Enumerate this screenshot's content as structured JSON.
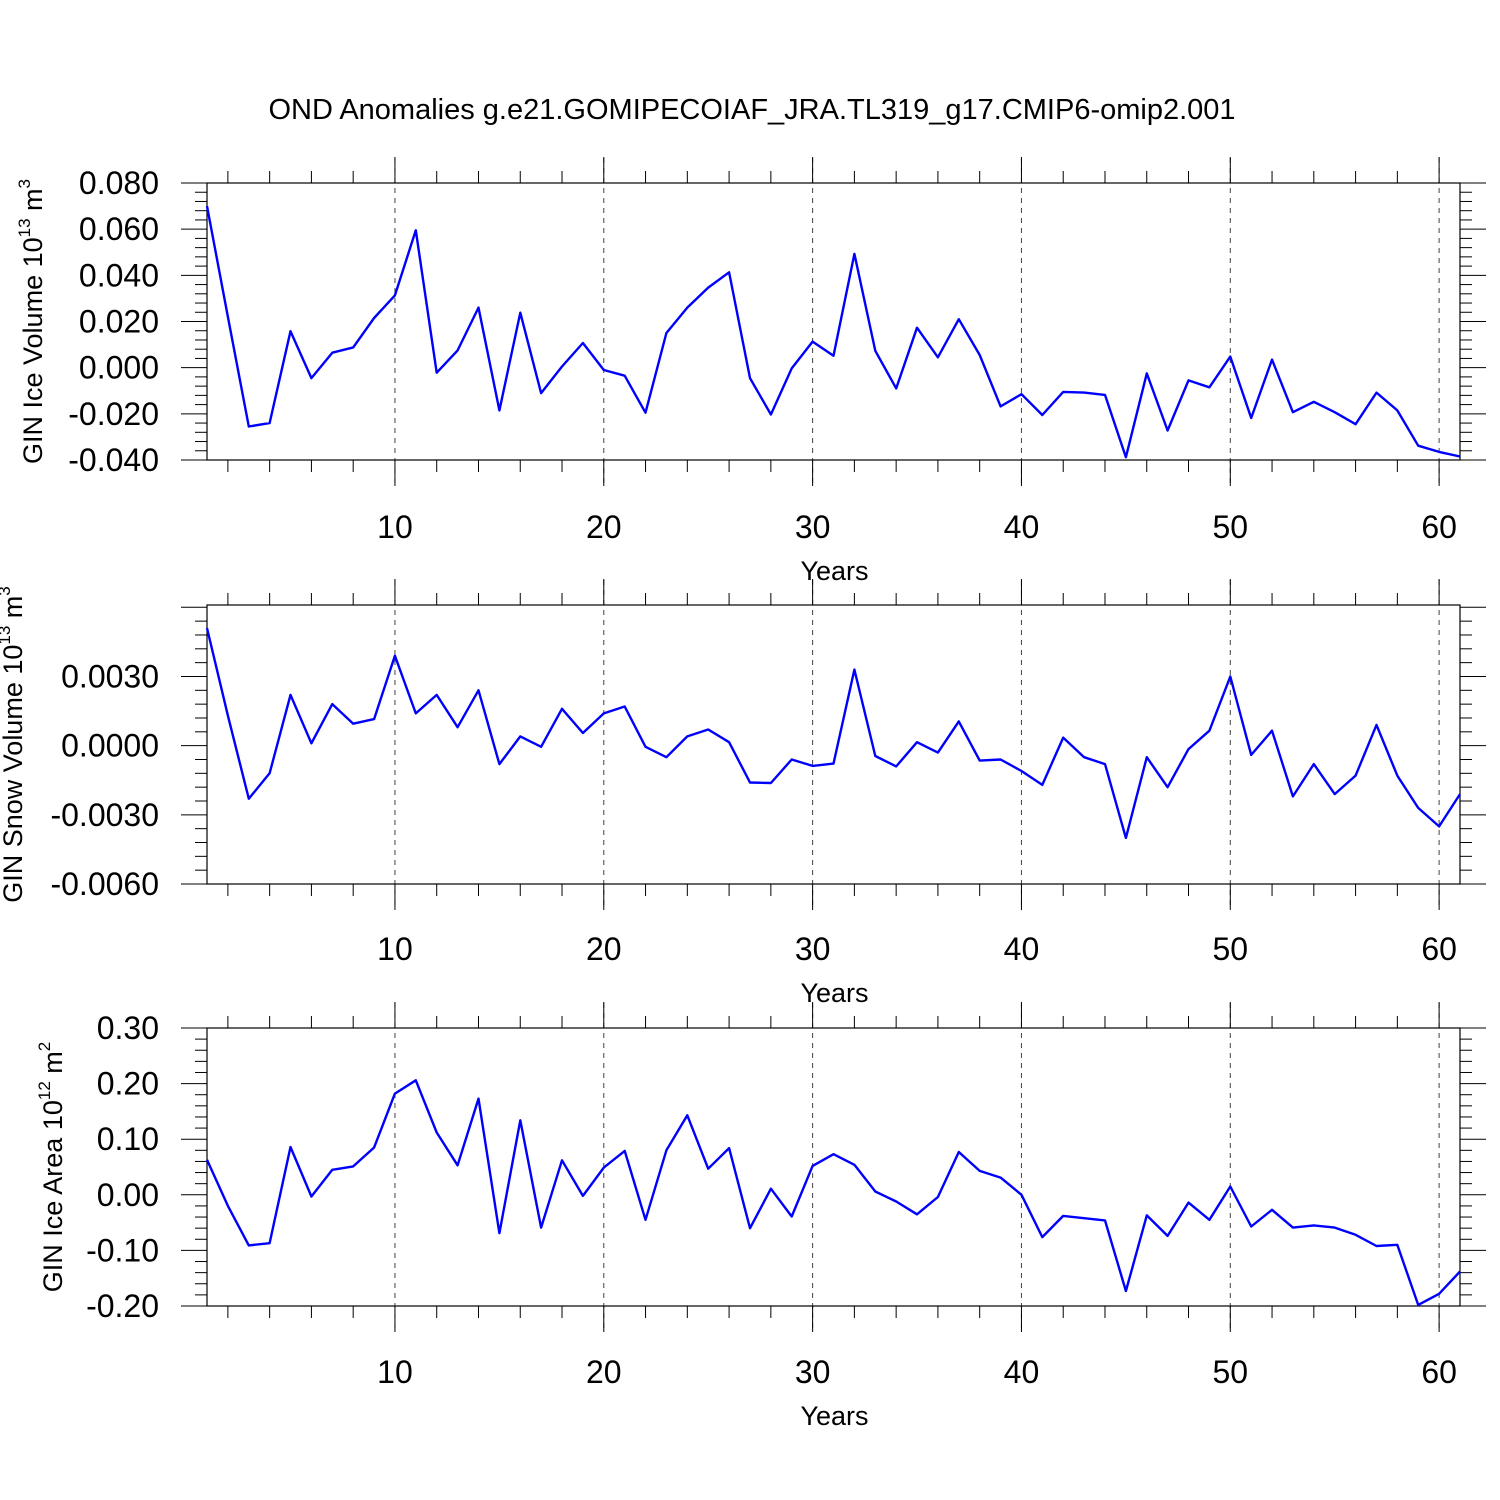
{
  "title": "OND Anomalies g.e21.GOMIPECOIAF_JRA.TL319_g17.CMIP6-omip2.001",
  "colors": {
    "line": "#0000ff",
    "axes": "#000000",
    "grid": "#444444",
    "background": "#ffffff"
  },
  "chart_data": [
    {
      "type": "line",
      "ylabel_text": "GIN Ice Volume 10",
      "ylabel_exp": "13",
      "ylabel_unit": " m",
      "ylabel_unit_exp": "3",
      "xlabel": "Years",
      "xlim": [
        1,
        61
      ],
      "ylim": [
        -0.04,
        0.08
      ],
      "xticks": [
        10,
        20,
        30,
        40,
        50,
        60
      ],
      "xtick_labels": [
        "10",
        "20",
        "30",
        "40",
        "50",
        "60"
      ],
      "yticks": [
        -0.04,
        -0.02,
        0.0,
        0.02,
        0.04,
        0.06,
        0.08
      ],
      "ytick_labels": [
        "-0.040",
        "-0.020",
        "0.000",
        "0.020",
        "0.040",
        "0.060",
        "0.080"
      ],
      "vgrid": [
        10,
        20,
        30,
        40,
        50,
        60
      ],
      "x": [
        1,
        2,
        3,
        4,
        5,
        6,
        7,
        8,
        9,
        10,
        11,
        12,
        13,
        14,
        15,
        16,
        17,
        18,
        19,
        20,
        21,
        22,
        23,
        24,
        25,
        26,
        27,
        28,
        29,
        30,
        31,
        32,
        33,
        34,
        35,
        36,
        37,
        38,
        39,
        40,
        41,
        42,
        43,
        44,
        45,
        46,
        47,
        48,
        49,
        50,
        51,
        52,
        53,
        54,
        55,
        56,
        57,
        58,
        59,
        60,
        61
      ],
      "series": [
        {
          "name": "GIN Ice Volume",
          "values": [
            0.07,
            0.022,
            -0.0255,
            -0.024,
            0.0158,
            -0.0045,
            0.0065,
            0.0088,
            0.0215,
            0.0313,
            0.0595,
            -0.0022,
            0.0075,
            0.026,
            -0.0185,
            0.0238,
            -0.011,
            0.0005,
            0.0107,
            -0.001,
            -0.0035,
            -0.0195,
            0.015,
            0.026,
            0.0347,
            0.0413,
            -0.0045,
            -0.0203,
            -0.0003,
            0.0113,
            0.0052,
            0.0493,
            0.0073,
            -0.009,
            0.0173,
            0.0045,
            0.021,
            0.0055,
            -0.0168,
            -0.0115,
            -0.0205,
            -0.0105,
            -0.0108,
            -0.0118,
            -0.0388,
            -0.0025,
            -0.0272,
            -0.0055,
            -0.0085,
            0.0048,
            -0.0218,
            0.0035,
            -0.0193,
            -0.0148,
            -0.0193,
            -0.0245,
            -0.0108,
            -0.0185,
            -0.0338,
            -0.0365,
            -0.0385
          ]
        }
      ]
    },
    {
      "type": "line",
      "ylabel_text": "GIN Snow Volume 10",
      "ylabel_exp": "13",
      "ylabel_unit": " m",
      "ylabel_unit_exp": "3",
      "xlabel": "Years",
      "xlim": [
        1,
        61
      ],
      "ylim": [
        -0.006,
        0.0061
      ],
      "xticks": [
        10,
        20,
        30,
        40,
        50,
        60
      ],
      "xtick_labels": [
        "10",
        "20",
        "30",
        "40",
        "50",
        "60"
      ],
      "yticks": [
        -0.006,
        -0.003,
        0.0,
        0.003
      ],
      "ytick_labels": [
        "-0.0060",
        "-0.0030",
        "0.0000",
        "0.0030"
      ],
      "vgrid": [
        10,
        20,
        30,
        40,
        50,
        60
      ],
      "x": [
        1,
        2,
        3,
        4,
        5,
        6,
        7,
        8,
        9,
        10,
        11,
        12,
        13,
        14,
        15,
        16,
        17,
        18,
        19,
        20,
        21,
        22,
        23,
        24,
        25,
        26,
        27,
        28,
        29,
        30,
        31,
        32,
        33,
        34,
        35,
        36,
        37,
        38,
        39,
        40,
        41,
        42,
        43,
        44,
        45,
        46,
        47,
        48,
        49,
        50,
        51,
        52,
        53,
        54,
        55,
        56,
        57,
        58,
        59,
        60,
        61
      ],
      "series": [
        {
          "name": "GIN Snow Volume",
          "values": [
            0.0051,
            0.0013,
            -0.0023,
            -0.0012,
            0.0022,
            0.0001,
            0.0018,
            0.00095,
            0.00115,
            0.0039,
            0.0014,
            0.0022,
            0.0008,
            0.0024,
            -0.0008,
            0.0004,
            -5e-05,
            0.0016,
            0.00055,
            0.0014,
            0.0017,
            -5e-05,
            -0.0005,
            0.0004,
            0.0007,
            0.00015,
            -0.0016,
            -0.00162,
            -0.0006,
            -0.00088,
            -0.00078,
            0.0033,
            -0.00045,
            -0.0009,
            0.00015,
            -0.0003,
            0.00105,
            -0.00065,
            -0.0006,
            -0.0011,
            -0.0017,
            0.00035,
            -0.0005,
            -0.0008,
            -0.004,
            -0.0005,
            -0.0018,
            -0.00015,
            0.00065,
            0.003,
            -0.0004,
            0.00065,
            -0.0022,
            -0.0008,
            -0.0021,
            -0.0013,
            0.0009,
            -0.0013,
            -0.0027,
            -0.0035,
            -0.0021
          ]
        }
      ]
    },
    {
      "type": "line",
      "ylabel_text": "GIN Ice Area 10",
      "ylabel_exp": "12",
      "ylabel_unit": " m",
      "ylabel_unit_exp": "2",
      "xlabel": "Years",
      "xlim": [
        1,
        61
      ],
      "ylim": [
        -0.2,
        0.3
      ],
      "xticks": [
        10,
        20,
        30,
        40,
        50,
        60
      ],
      "xtick_labels": [
        "10",
        "20",
        "30",
        "40",
        "50",
        "60"
      ],
      "yticks": [
        -0.2,
        -0.1,
        0.0,
        0.1,
        0.2,
        0.3
      ],
      "ytick_labels": [
        "-0.20",
        "-0.10",
        "0.00",
        "0.10",
        "0.20",
        "0.30"
      ],
      "vgrid": [
        10,
        20,
        30,
        40,
        50,
        60
      ],
      "x": [
        1,
        2,
        3,
        4,
        5,
        6,
        7,
        8,
        9,
        10,
        11,
        12,
        13,
        14,
        15,
        16,
        17,
        18,
        19,
        20,
        21,
        22,
        23,
        24,
        25,
        26,
        27,
        28,
        29,
        30,
        31,
        32,
        33,
        34,
        35,
        36,
        37,
        38,
        39,
        40,
        41,
        42,
        43,
        44,
        45,
        46,
        47,
        48,
        49,
        50,
        51,
        52,
        53,
        54,
        55,
        56,
        57,
        58,
        59,
        60,
        61
      ],
      "series": [
        {
          "name": "GIN Ice Area",
          "values": [
            0.063,
            -0.02,
            -0.091,
            -0.087,
            0.086,
            -0.003,
            0.045,
            0.051,
            0.085,
            0.182,
            0.206,
            0.112,
            0.053,
            0.173,
            -0.069,
            0.134,
            -0.059,
            0.062,
            -0.002,
            0.049,
            0.079,
            -0.045,
            0.08,
            0.143,
            0.047,
            0.084,
            -0.06,
            0.011,
            -0.039,
            0.052,
            0.073,
            0.054,
            0.006,
            -0.012,
            -0.035,
            -0.004,
            0.077,
            0.043,
            0.031,
            0.0,
            -0.076,
            -0.038,
            -0.042,
            -0.046,
            -0.173,
            -0.037,
            -0.074,
            -0.014,
            -0.045,
            0.015,
            -0.057,
            -0.027,
            -0.059,
            -0.055,
            -0.059,
            -0.072,
            -0.092,
            -0.09,
            -0.198,
            -0.178,
            -0.138
          ]
        }
      ]
    }
  ]
}
